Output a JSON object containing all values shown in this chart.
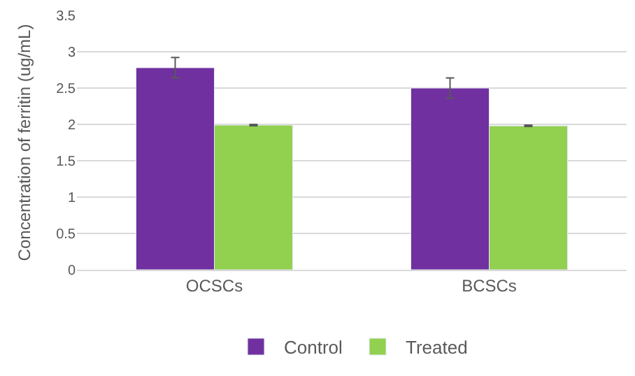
{
  "chart_data": {
    "type": "bar",
    "ylabel": "Concentration of ferritin (ug/mL)",
    "categories": [
      "OCSCs",
      "BCSCs"
    ],
    "series": [
      {
        "name": "Control",
        "color": "#7030a0",
        "values": [
          2.78,
          2.5
        ],
        "errors": [
          0.14,
          0.14
        ]
      },
      {
        "name": "Treated",
        "color": "#92d050",
        "values": [
          1.99,
          1.98
        ],
        "errors": [
          0.01,
          0.01
        ]
      }
    ],
    "ylim": [
      0,
      3.5
    ],
    "yticks": [
      0,
      0.5,
      1,
      1.5,
      2,
      2.5,
      3,
      3.5
    ],
    "grid": "y",
    "legend": "bottom"
  }
}
